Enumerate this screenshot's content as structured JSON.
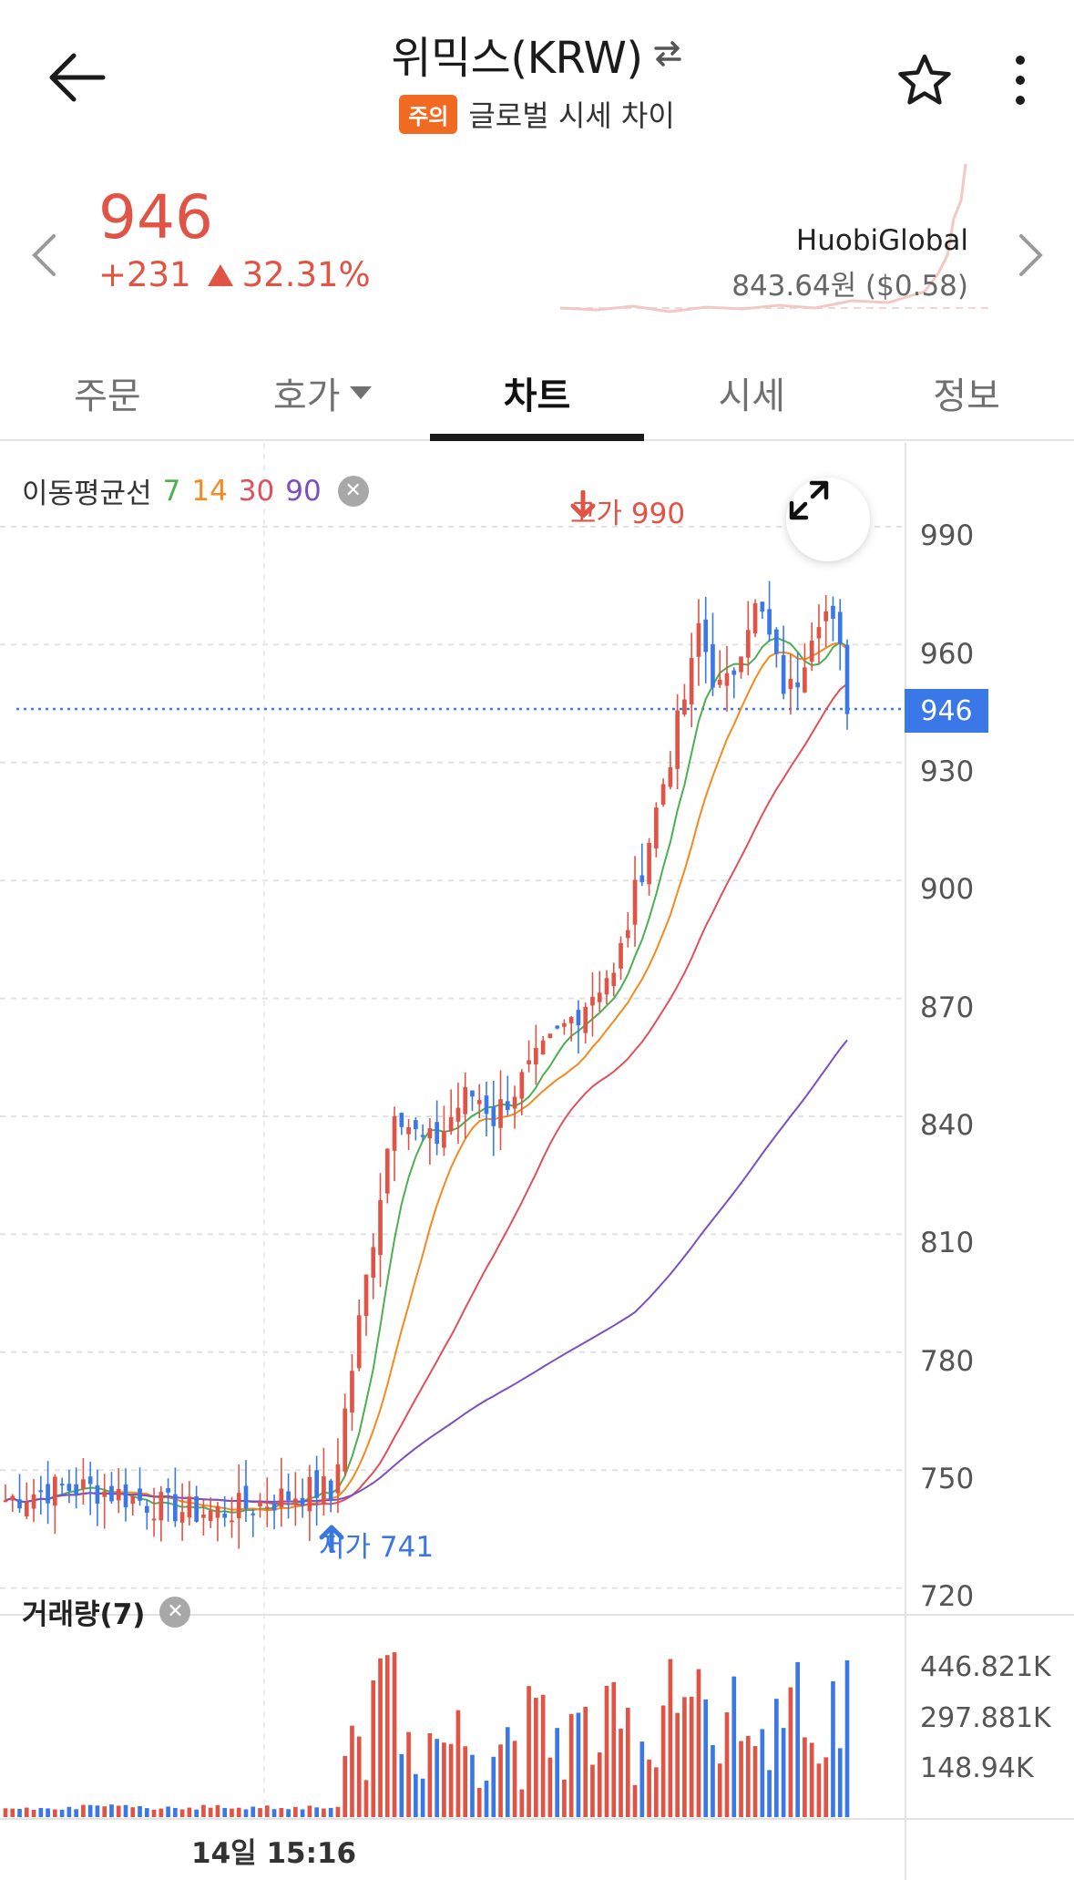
{
  "header": {
    "title": "위믹스(KRW)",
    "badge": "주의",
    "subtitle": "글로벌 시세 차이"
  },
  "price": {
    "current": "946",
    "change": "+231",
    "change_pct": "32.31%",
    "exchange_name": "HuobiGlobal",
    "exchange_price": "843.64원 ($0.58)"
  },
  "tabs": [
    {
      "label": "주문"
    },
    {
      "label": "호가"
    },
    {
      "label": "차트"
    },
    {
      "label": "시세"
    },
    {
      "label": "정보"
    }
  ],
  "chart": {
    "ma_label": "이동평균선",
    "ma_periods": [
      "7",
      "14",
      "30",
      "90"
    ],
    "high_label": "고가 990",
    "low_label": "저가 741",
    "current_tag": "946",
    "y_ticks": [
      "990",
      "960",
      "930",
      "900",
      "870",
      "840",
      "810",
      "780",
      "750",
      "720"
    ],
    "volume_label": "거래량(7)",
    "volume_ticks": [
      "446.821K",
      "297.881K",
      "148.94K"
    ],
    "time_label": "14일 15:16",
    "colors": {
      "up": "#e05345",
      "down": "#3b78e7",
      "ma7": "#4caf50",
      "ma14": "#f5891f",
      "ma30": "#e0505a",
      "ma90": "#7b4fc0"
    }
  }
}
